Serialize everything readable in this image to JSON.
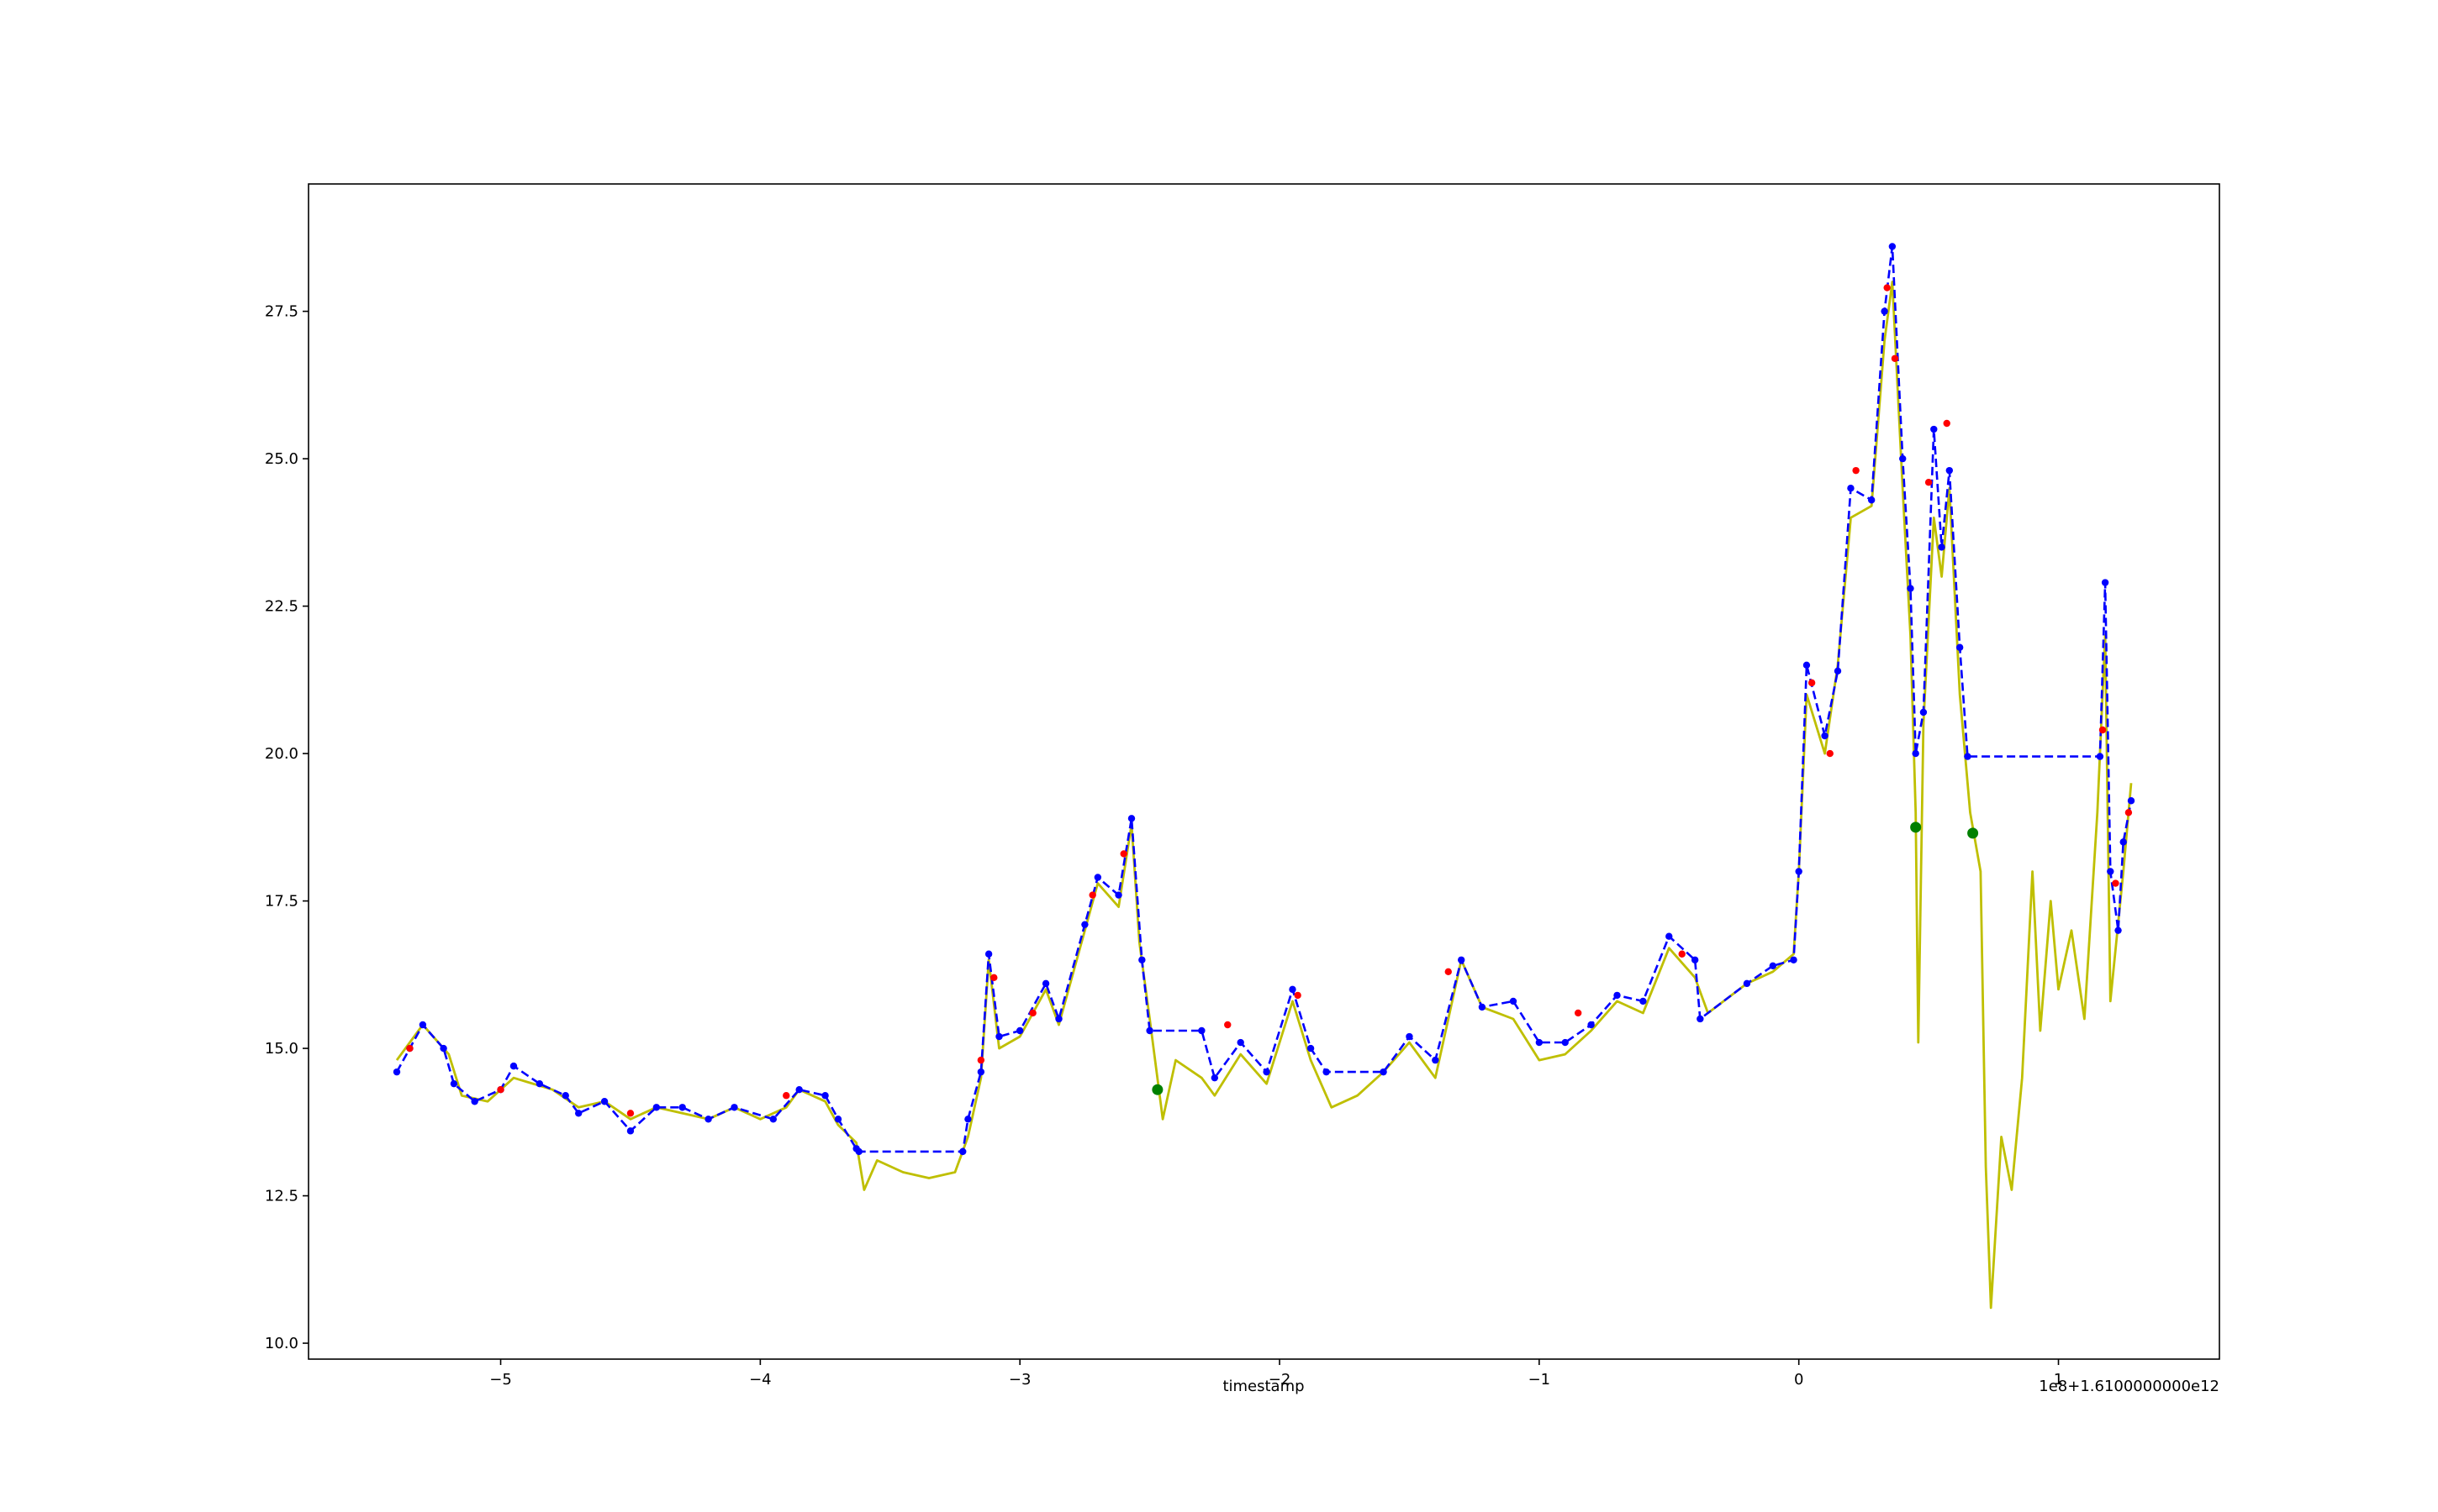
{
  "chart_data": {
    "type": "line",
    "xlabel": "timestamp",
    "x_offset_label": "1e8+1.6100000000e12",
    "xlim": [
      -5.74,
      1.62
    ],
    "ylim": [
      9.73,
      29.66
    ],
    "xticks": [
      {
        "value": -5,
        "label": "−5"
      },
      {
        "value": -4,
        "label": "−4"
      },
      {
        "value": -3,
        "label": "−3"
      },
      {
        "value": -2,
        "label": "−2"
      },
      {
        "value": -1,
        "label": "−1"
      },
      0,
      1
    ],
    "yticks": [
      {
        "value": 10,
        "label": "10.0"
      },
      12.5,
      {
        "value": 15,
        "label": "15.0"
      },
      17.5,
      {
        "value": 20,
        "label": "20.0"
      },
      22.5,
      {
        "value": 25,
        "label": "25.0"
      },
      27.5
    ],
    "grid": false,
    "series": [
      {
        "color": "#bfbf00",
        "linestyle": "solid",
        "x": [
          -5.4,
          -5.3,
          -5.2,
          -5.15,
          -5.05,
          -4.95,
          -4.8,
          -4.7,
          -4.6,
          -4.5,
          -4.4,
          -4.3,
          -4.2,
          -4.1,
          -4.0,
          -3.9,
          -3.85,
          -3.75,
          -3.7,
          -3.63,
          -3.6,
          -3.55,
          -3.45,
          -3.35,
          -3.25,
          -3.2,
          -3.15,
          -3.12,
          -3.08,
          -3.0,
          -2.9,
          -2.85,
          -2.75,
          -2.7,
          -2.62,
          -2.57,
          -2.54,
          -2.5,
          -2.45,
          -2.4,
          -2.3,
          -2.25,
          -2.15,
          -2.05,
          -1.95,
          -1.88,
          -1.8,
          -1.7,
          -1.6,
          -1.5,
          -1.4,
          -1.3,
          -1.22,
          -1.1,
          -1.0,
          -0.9,
          -0.8,
          -0.7,
          -0.6,
          -0.5,
          -0.4,
          -0.35,
          -0.2,
          -0.1,
          -0.02,
          0.0,
          0.03,
          0.1,
          0.15,
          0.2,
          0.28,
          0.33,
          0.36,
          0.4,
          0.43,
          0.45,
          0.46,
          0.48,
          0.52,
          0.55,
          0.58,
          0.62,
          0.66,
          0.7,
          0.72,
          0.74,
          0.78,
          0.82,
          0.86,
          0.9,
          0.93,
          0.97,
          1.0,
          1.05,
          1.1,
          1.15,
          1.18,
          1.2,
          1.25,
          1.28
        ],
        "values": [
          14.8,
          15.4,
          14.9,
          14.2,
          14.1,
          14.5,
          14.3,
          14.0,
          14.1,
          13.8,
          14.0,
          13.9,
          13.8,
          14.0,
          13.8,
          14.0,
          14.3,
          14.1,
          13.7,
          13.4,
          12.6,
          13.1,
          12.9,
          12.8,
          12.9,
          13.5,
          14.5,
          16.5,
          15.0,
          15.2,
          16.0,
          15.4,
          17.0,
          17.8,
          17.4,
          18.8,
          16.8,
          15.5,
          13.8,
          14.8,
          14.5,
          14.2,
          14.9,
          14.4,
          15.8,
          14.8,
          14.0,
          14.2,
          14.6,
          15.1,
          14.5,
          16.5,
          15.7,
          15.5,
          14.8,
          14.9,
          15.3,
          15.8,
          15.6,
          16.7,
          16.2,
          15.6,
          16.1,
          16.3,
          16.6,
          18.0,
          21.0,
          20.0,
          21.5,
          24.0,
          24.2,
          27.0,
          28.0,
          24.5,
          22.0,
          19.0,
          15.1,
          20.5,
          24.0,
          23.0,
          24.5,
          21.0,
          19.0,
          18.0,
          13.0,
          10.6,
          13.5,
          12.6,
          14.5,
          18.0,
          15.3,
          17.5,
          16.0,
          17.0,
          15.5,
          19.0,
          22.0,
          15.8,
          18.0,
          19.5
        ]
      },
      {
        "color": "#0000ff",
        "linestyle": "dashed",
        "marker": "o",
        "x": [
          -5.4,
          -5.35,
          -5.3,
          -5.22,
          -5.18,
          -5.1,
          -5.0,
          -4.95,
          -4.85,
          -4.75,
          -4.7,
          -4.6,
          -4.5,
          -4.4,
          -4.3,
          -4.2,
          -4.1,
          -3.95,
          -3.85,
          -3.75,
          -3.7,
          -3.63,
          -3.62,
          -3.22,
          -3.2,
          -3.15,
          -3.12,
          -3.08,
          -3.0,
          -2.9,
          -2.85,
          -2.75,
          -2.7,
          -2.62,
          -2.57,
          -2.53,
          -2.5,
          -2.3,
          -2.25,
          -2.15,
          -2.05,
          -1.95,
          -1.88,
          -1.82,
          -1.6,
          -1.5,
          -1.4,
          -1.3,
          -1.22,
          -1.1,
          -1.0,
          -0.9,
          -0.8,
          -0.7,
          -0.6,
          -0.5,
          -0.4,
          -0.38,
          -0.2,
          -0.1,
          -0.02,
          0.0,
          0.03,
          0.1,
          0.15,
          0.2,
          0.28,
          0.33,
          0.36,
          0.4,
          0.43,
          0.45,
          0.48,
          0.52,
          0.55,
          0.58,
          0.62,
          0.65,
          1.16,
          1.18,
          1.2,
          1.23,
          1.25,
          1.28
        ],
        "values": [
          14.6,
          15.0,
          15.4,
          15.0,
          14.4,
          14.1,
          14.3,
          14.7,
          14.4,
          14.2,
          13.9,
          14.1,
          13.6,
          14.0,
          14.0,
          13.8,
          14.0,
          13.8,
          14.3,
          14.2,
          13.8,
          13.3,
          13.25,
          13.25,
          13.8,
          14.6,
          16.6,
          15.2,
          15.3,
          16.1,
          15.5,
          17.1,
          17.9,
          17.6,
          18.9,
          16.5,
          15.3,
          15.3,
          14.5,
          15.1,
          14.6,
          16.0,
          15.0,
          14.6,
          14.6,
          15.2,
          14.8,
          16.5,
          15.7,
          15.8,
          15.1,
          15.1,
          15.4,
          15.9,
          15.8,
          16.9,
          16.5,
          15.5,
          16.1,
          16.4,
          16.5,
          18.0,
          21.5,
          20.3,
          21.4,
          24.5,
          24.3,
          27.5,
          28.6,
          25.0,
          22.8,
          20.0,
          20.7,
          25.5,
          23.5,
          24.8,
          21.8,
          19.95,
          19.95,
          22.9,
          18.0,
          17.0,
          18.5,
          19.2
        ]
      },
      {
        "color": "#ff0000",
        "linestyle": "none",
        "marker": "o",
        "x": [
          -5.35,
          -5.0,
          -4.5,
          -3.9,
          -3.15,
          -3.1,
          -2.95,
          -2.72,
          -2.6,
          -2.2,
          -1.93,
          -1.35,
          -0.85,
          -0.45,
          0.05,
          0.12,
          0.22,
          0.34,
          0.37,
          0.5,
          0.57,
          1.17,
          1.22,
          1.27
        ],
        "values": [
          15.0,
          14.3,
          13.9,
          14.2,
          14.8,
          16.2,
          15.6,
          17.6,
          18.3,
          15.4,
          15.9,
          16.3,
          15.6,
          16.6,
          21.2,
          20.0,
          24.8,
          27.9,
          26.7,
          24.6,
          25.6,
          20.4,
          17.8,
          19.0
        ]
      },
      {
        "color": "#008000",
        "linestyle": "none",
        "marker": "o",
        "marker_size": "large",
        "x": [
          -2.47,
          0.45,
          0.67
        ],
        "values": [
          14.3,
          18.75,
          18.65
        ]
      }
    ]
  }
}
